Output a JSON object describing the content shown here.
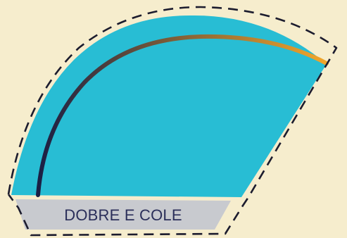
{
  "colors": {
    "background": "#f6edcd",
    "card_fill": "#28bdd4",
    "tab_fill": "#c8cacf",
    "cut_line": "#1c1c2e",
    "arc_gradient_start": "#1a1f44",
    "arc_gradient_end": "#f2a62a",
    "label_text": "#2b2f5a"
  },
  "tab": {
    "label": "DOBRE E COLE"
  },
  "icons": {
    "cut_line": "dashed-cut-outline",
    "arc": "gradient-arc-stripe"
  }
}
